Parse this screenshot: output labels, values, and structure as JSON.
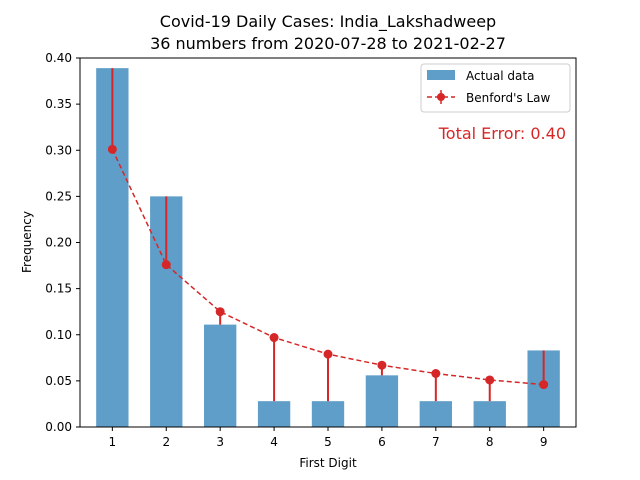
{
  "chart_data": {
    "type": "bar",
    "title_line1": "Covid-19 Daily Cases: India_Lakshadweep",
    "title_line2": "36 numbers from 2020-07-28 to 2021-02-27",
    "xlabel": "First Digit",
    "ylabel": "Frequency",
    "categories": [
      "1",
      "2",
      "3",
      "4",
      "5",
      "6",
      "7",
      "8",
      "9"
    ],
    "ylim": [
      0,
      0.4
    ],
    "yticks": [
      "0.00",
      "0.05",
      "0.10",
      "0.15",
      "0.20",
      "0.25",
      "0.30",
      "0.35",
      "0.40"
    ],
    "series": [
      {
        "name": "Actual data",
        "kind": "bar",
        "color": "#5f9ec8",
        "values": [
          0.389,
          0.25,
          0.111,
          0.028,
          0.028,
          0.056,
          0.028,
          0.028,
          0.083
        ]
      },
      {
        "name": "Benford's Law",
        "kind": "line",
        "color": "#d62728",
        "values": [
          0.301,
          0.176,
          0.125,
          0.097,
          0.079,
          0.067,
          0.058,
          0.051,
          0.046
        ]
      }
    ],
    "annotation": "Total Error: 0.40",
    "legend_position": "top-right",
    "grid": false
  }
}
